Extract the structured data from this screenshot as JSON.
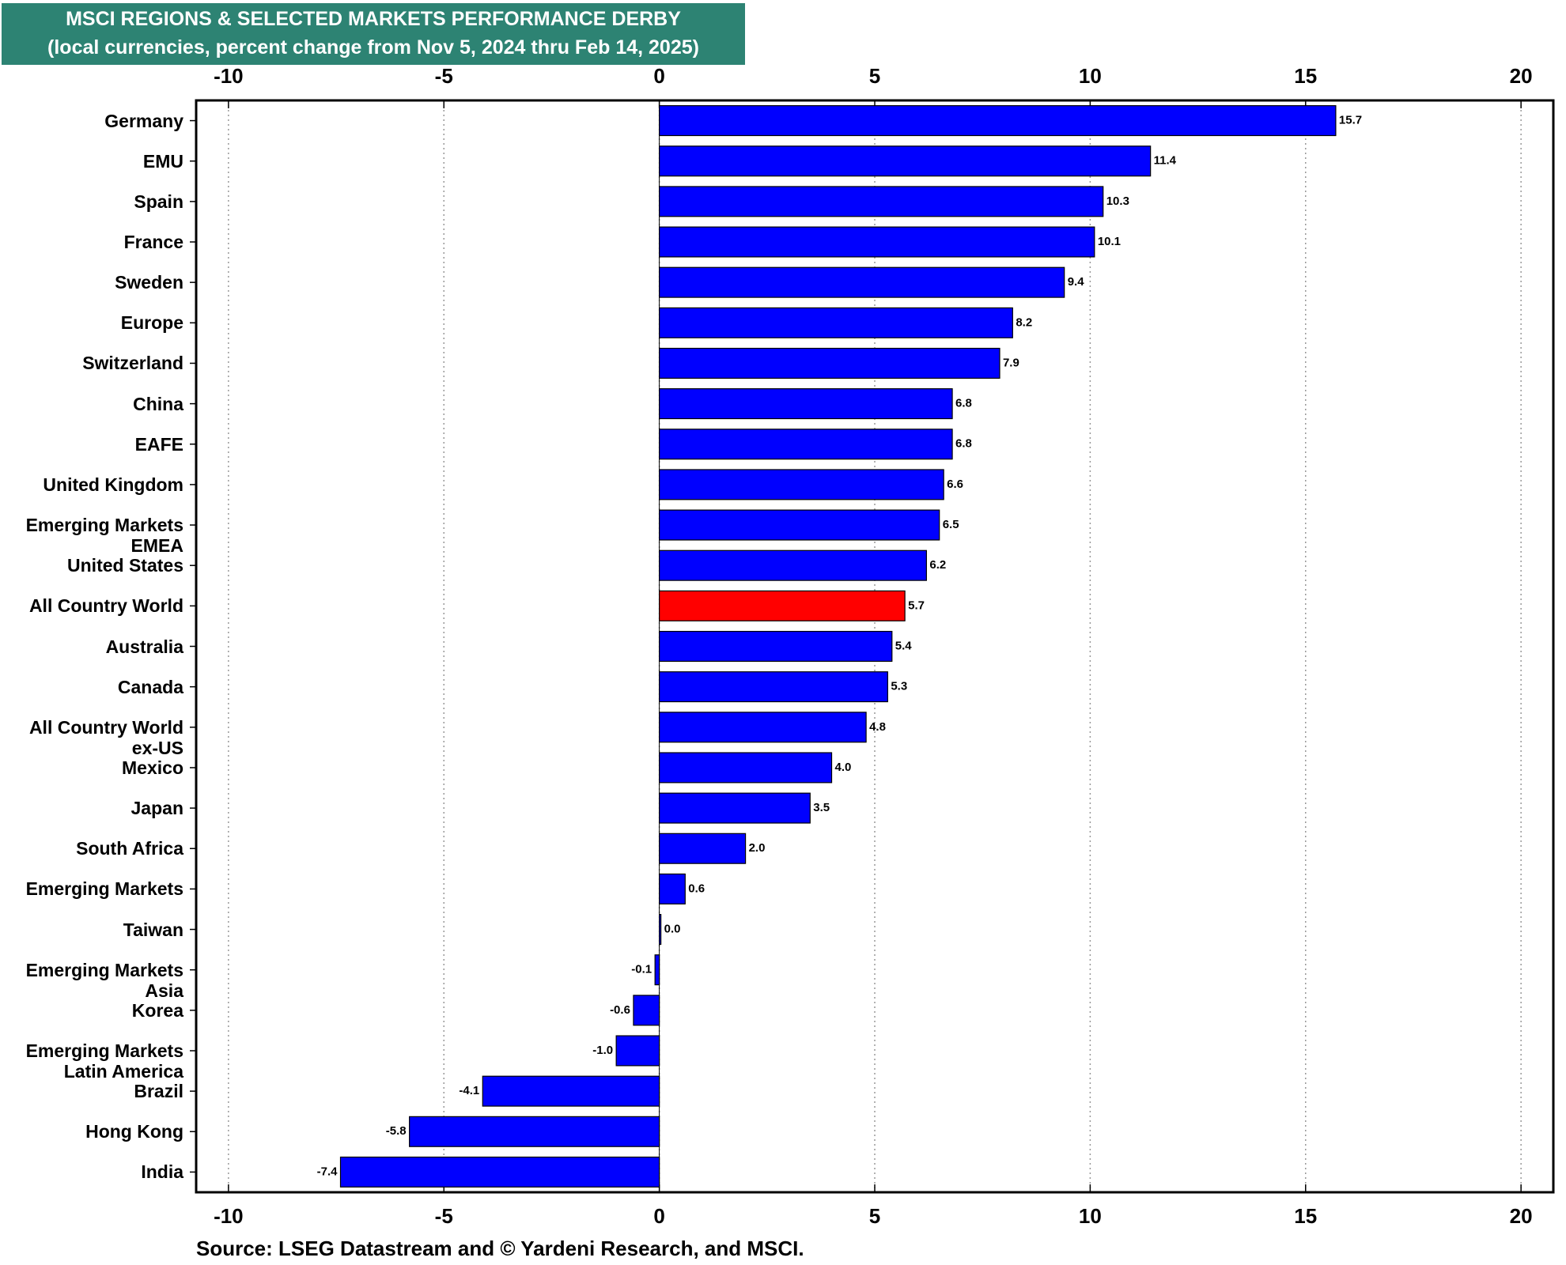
{
  "chart_data": {
    "type": "hbar",
    "title": "MSCI REGIONS & SELECTED MARKETS PERFORMANCE DERBY",
    "subtitle": "(local currencies, percent change from Nov 5, 2024 thru Feb 14, 2025)",
    "source": "Source: LSEG Datastream and © Yardeni Research, and MSCI.",
    "categories": [
      "Germany",
      "EMU",
      "Spain",
      "France",
      "Sweden",
      "Europe",
      "Switzerland",
      "China",
      "EAFE",
      "United Kingdom",
      "Emerging Markets\nEMEA",
      "United States",
      "All Country World",
      "Australia",
      "Canada",
      "All Country World\nex-US",
      "Mexico",
      "Japan",
      "South Africa",
      "Emerging Markets",
      "Taiwan",
      "Emerging Markets\nAsia",
      "Korea",
      "Emerging Markets\nLatin America",
      "Brazil",
      "Hong Kong",
      "India"
    ],
    "values": [
      15.7,
      11.4,
      10.3,
      10.1,
      9.4,
      8.2,
      7.9,
      6.8,
      6.8,
      6.6,
      6.5,
      6.2,
      5.7,
      5.4,
      5.3,
      4.8,
      4.0,
      3.5,
      2.0,
      0.6,
      0.0,
      -0.1,
      -0.6,
      -1.0,
      -4.1,
      -5.8,
      -7.4
    ],
    "value_labels": [
      "15.7",
      "11.4",
      "10.3",
      "10.1",
      "9.4",
      "8.2",
      "7.9",
      "6.8",
      "6.8",
      "6.6",
      "6.5",
      "6.2",
      "5.7",
      "5.4",
      "5.3",
      "4.8",
      "4.0",
      "3.5",
      "2.0",
      "0.6",
      "0.0",
      "-0.1",
      "-0.6",
      "-1.0",
      "-4.1",
      "-5.8",
      "-7.4"
    ],
    "colors": [
      "#0000ff",
      "#0000ff",
      "#0000ff",
      "#0000ff",
      "#0000ff",
      "#0000ff",
      "#0000ff",
      "#0000ff",
      "#0000ff",
      "#0000ff",
      "#0000ff",
      "#0000ff",
      "#ff0000",
      "#0000ff",
      "#0000ff",
      "#0000ff",
      "#0000ff",
      "#0000ff",
      "#0000ff",
      "#0000ff",
      "#0000ff",
      "#0000ff",
      "#0000ff",
      "#0000ff",
      "#0000ff",
      "#0000ff",
      "#0000ff"
    ],
    "xlim": [
      -10.75,
      20.75
    ],
    "xticks": [
      -10,
      -5,
      0,
      5,
      10,
      15,
      20
    ],
    "grid": true
  }
}
